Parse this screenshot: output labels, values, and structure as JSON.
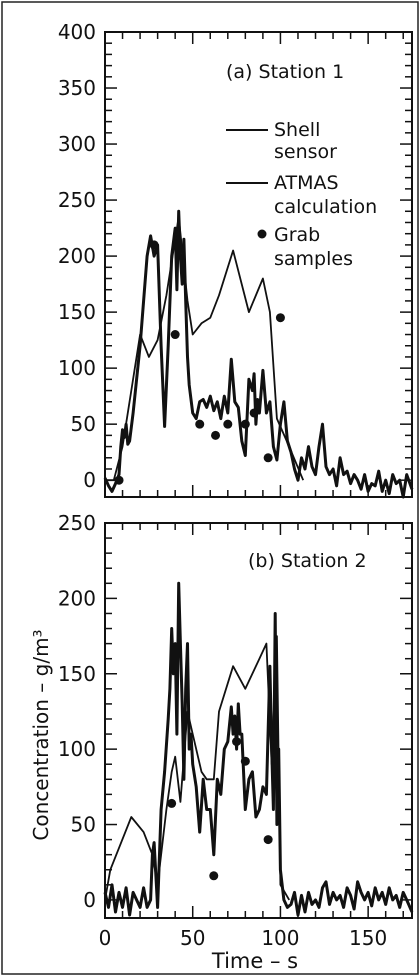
{
  "figure": {
    "ylabel": "Concentration – g/m³",
    "xlabel": "Time – s"
  },
  "chart_data": [
    {
      "type": "line",
      "title": "(a) Station 1",
      "xlim": [
        0,
        175
      ],
      "ylim": [
        -15,
        400
      ],
      "xticks": [
        0,
        50,
        100,
        150
      ],
      "yticks": [
        0,
        50,
        100,
        150,
        200,
        250,
        300,
        350,
        400
      ],
      "legend": {
        "placement": "top-right",
        "entries": [
          {
            "label_lines": [
              "Shell",
              "sensor"
            ],
            "marker": "line"
          },
          {
            "label_lines": [
              "ATMAS",
              "calculation"
            ],
            "marker": "line"
          },
          {
            "label_lines": [
              "Grab",
              "samples"
            ],
            "marker": "dot"
          }
        ]
      },
      "series": [
        {
          "name": "Shell sensor",
          "style": "thick",
          "x": [
            0,
            2,
            4,
            6,
            8,
            9,
            10,
            11,
            12,
            13,
            14,
            16,
            18,
            20,
            22,
            24,
            26,
            28,
            30,
            32,
            34,
            36,
            38,
            40,
            41,
            42,
            43,
            44,
            45,
            46,
            47,
            48,
            50,
            52,
            54,
            56,
            58,
            60,
            62,
            64,
            66,
            68,
            70,
            72,
            74,
            76,
            78,
            80,
            82,
            84,
            85,
            86,
            87,
            88,
            90,
            92,
            94,
            96,
            98,
            100,
            102,
            104,
            106,
            108,
            110,
            112,
            114,
            116,
            118,
            120,
            122,
            124,
            126,
            128,
            130,
            132,
            134,
            136,
            138,
            140,
            142,
            144,
            146,
            148,
            150,
            152,
            154,
            156,
            158,
            160,
            162,
            164,
            166,
            168,
            170,
            172,
            175
          ],
          "y": [
            2,
            -5,
            -10,
            -3,
            5,
            30,
            45,
            38,
            50,
            32,
            35,
            60,
            90,
            120,
            160,
            200,
            218,
            200,
            210,
            120,
            48,
            120,
            200,
            225,
            170,
            240,
            200,
            175,
            215,
            160,
            110,
            85,
            60,
            55,
            70,
            72,
            65,
            75,
            62,
            70,
            55,
            75,
            60,
            108,
            70,
            65,
            35,
            22,
            90,
            80,
            95,
            50,
            72,
            60,
            98,
            60,
            70,
            30,
            18,
            50,
            70,
            35,
            25,
            10,
            0,
            20,
            10,
            30,
            12,
            5,
            30,
            50,
            12,
            5,
            10,
            -5,
            20,
            5,
            8,
            -3,
            5,
            0,
            -8,
            5,
            -10,
            -3,
            -5,
            8,
            -10,
            0,
            -12,
            5,
            -3,
            0,
            -15,
            5,
            -8
          ]
        },
        {
          "name": "ATMAS calculation",
          "style": "thin",
          "x": [
            0,
            5,
            10,
            15,
            20,
            25,
            30,
            35,
            42,
            47,
            50,
            55,
            60,
            65,
            73,
            82,
            90,
            94,
            98,
            105,
            113
          ],
          "y": [
            0,
            0,
            30,
            80,
            130,
            110,
            125,
            165,
            235,
            160,
            130,
            140,
            145,
            165,
            205,
            150,
            180,
            150,
            55,
            30,
            0
          ]
        },
        {
          "name": "Grab samples",
          "style": "dots",
          "x": [
            8,
            28,
            40,
            54,
            63,
            70,
            80,
            85,
            93,
            100
          ],
          "y": [
            0,
            210,
            130,
            50,
            40,
            50,
            50,
            60,
            20,
            145
          ]
        }
      ]
    },
    {
      "type": "line",
      "title": "(b) Station 2",
      "xlim": [
        0,
        175
      ],
      "ylim": [
        -12,
        250
      ],
      "xticks": [
        0,
        50,
        100,
        150
      ],
      "xticklabels": [
        "0",
        "50",
        "100",
        "150"
      ],
      "yticks": [
        0,
        50,
        100,
        150,
        200,
        250
      ],
      "series": [
        {
          "name": "Shell sensor",
          "style": "thick",
          "x": [
            0,
            2,
            4,
            6,
            8,
            10,
            12,
            14,
            16,
            18,
            20,
            22,
            24,
            26,
            27,
            28,
            30,
            32,
            34,
            36,
            37,
            38,
            39,
            40,
            41,
            42,
            43,
            44,
            45,
            46,
            47,
            48,
            49,
            50,
            52,
            54,
            56,
            58,
            60,
            62,
            64,
            66,
            68,
            70,
            72,
            73,
            74,
            75,
            76,
            77,
            78,
            80,
            82,
            84,
            86,
            88,
            90,
            92,
            94,
            95,
            96,
            97,
            98,
            99,
            100,
            102,
            104,
            106,
            108,
            110,
            112,
            114,
            116,
            118,
            120,
            122,
            124,
            126,
            128,
            130,
            132,
            134,
            136,
            138,
            140,
            142,
            144,
            146,
            148,
            150,
            152,
            154,
            156,
            158,
            160,
            162,
            164,
            166,
            168,
            170,
            172,
            175
          ],
          "y": [
            5,
            -5,
            10,
            -8,
            5,
            -5,
            8,
            -10,
            5,
            0,
            -5,
            8,
            -5,
            0,
            30,
            38,
            -5,
            60,
            85,
            120,
            140,
            180,
            150,
            170,
            110,
            210,
            170,
            130,
            80,
            140,
            170,
            100,
            110,
            90,
            75,
            45,
            80,
            60,
            60,
            30,
            80,
            70,
            100,
            105,
            128,
            110,
            122,
            100,
            130,
            110,
            110,
            60,
            80,
            85,
            55,
            60,
            75,
            70,
            155,
            100,
            60,
            190,
            50,
            100,
            20,
            0,
            -5,
            -3,
            5,
            -10,
            3,
            -8,
            5,
            -3,
            0,
            -5,
            8,
            12,
            -3,
            5,
            0,
            3,
            -5,
            8,
            3,
            -6,
            12,
            5,
            0,
            5,
            -4,
            8,
            0,
            5,
            -3,
            8,
            0,
            3,
            -5,
            5,
            0,
            -8
          ]
        },
        {
          "name": "ATMAS calculation",
          "style": "thin",
          "x": [
            0,
            3,
            15,
            22,
            27,
            30,
            35,
            38,
            40,
            43,
            47,
            50,
            55,
            58,
            62,
            65,
            73,
            80,
            88,
            92,
            95,
            98,
            100,
            105
          ],
          "y": [
            0,
            20,
            55,
            45,
            30,
            10,
            60,
            85,
            95,
            65,
            125,
            110,
            85,
            80,
            80,
            125,
            155,
            140,
            160,
            170,
            90,
            175,
            10,
            0
          ]
        },
        {
          "name": "Grab samples",
          "style": "dots",
          "x": [
            38,
            62,
            75,
            80,
            93
          ],
          "y": [
            64,
            16,
            105,
            92,
            40
          ]
        }
      ]
    }
  ]
}
